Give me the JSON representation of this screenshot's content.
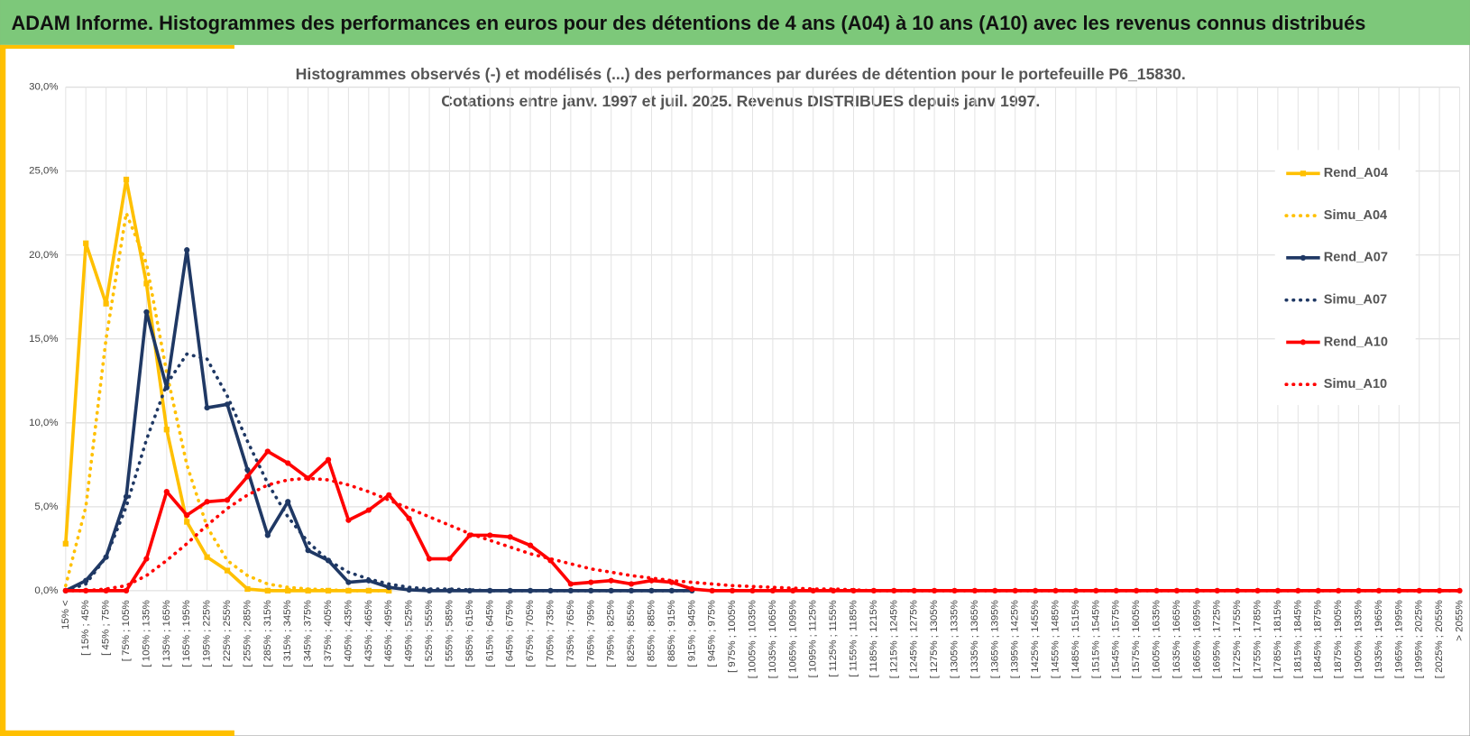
{
  "header": {
    "title": "ADAM Informe. Histogrammes des performances en euros pour des détentions de 4 ans (A04) à 10 ans (A10) avec les revenus connus distribués"
  },
  "chart_data": {
    "type": "line",
    "title": "Histogrammes observés (-) et modélisés (...) des performances par durées de détention pour le portefeuille P6_15830.",
    "subtitle": "Cotations entre janv. 1997 et juil. 2025. Revenus DISTRIBUES depuis janv 1997.",
    "grid": true,
    "legend": "right",
    "ylim": [
      0,
      30
    ],
    "yticks": [
      {
        "value": 0,
        "label": "0,0%"
      },
      {
        "value": 5,
        "label": "5,0%"
      },
      {
        "value": 10,
        "label": "10,0%"
      },
      {
        "value": 15,
        "label": "15,0%"
      },
      {
        "value": 20,
        "label": "20,0%"
      },
      {
        "value": 25,
        "label": "25,0%"
      },
      {
        "value": 30,
        "label": "30,0%"
      }
    ],
    "categories": [
      "15% <",
      "[ 15% ; 45%",
      "[ 45% ; 75%",
      "[ 75% ; 105%",
      "[ 105% ; 135%",
      "[ 135% ; 165%",
      "[ 165% ; 195%",
      "[ 195% ; 225%",
      "[ 225% ; 255%",
      "[ 255% ; 285%",
      "[ 285% ; 315%",
      "[ 315% ; 345%",
      "[ 345% ; 375%",
      "[ 375% ; 405%",
      "[ 405% ; 435%",
      "[ 435% ; 465%",
      "[ 465% ; 495%",
      "[ 495% ; 525%",
      "[ 525% ; 555%",
      "[ 555% ; 585%",
      "[ 585% ; 615%",
      "[ 615% ; 645%",
      "[ 645% ; 675%",
      "[ 675% ; 705%",
      "[ 705% ; 735%",
      "[ 735% ; 765%",
      "[ 765% ; 795%",
      "[ 795% ; 825%",
      "[ 825% ; 855%",
      "[ 855% ; 885%",
      "[ 885% ; 915%",
      "[ 915% ; 945%",
      "[ 945% ; 975%",
      "[ 975% ; 1005%",
      "[ 1005% ; 1035%",
      "[ 1035% ; 1065%",
      "[ 1065% ; 1095%",
      "[ 1095% ; 1125%",
      "[ 1125% ; 1155%",
      "[ 1155% ; 1185%",
      "[ 1185% ; 1215%",
      "[ 1215% ; 1245%",
      "[ 1245% ; 1275%",
      "[ 1275% ; 1305%",
      "[ 1305% ; 1335%",
      "[ 1335% ; 1365%",
      "[ 1365% ; 1395%",
      "[ 1395% ; 1425%",
      "[ 1425% ; 1455%",
      "[ 1455% ; 1485%",
      "[ 1485% ; 1515%",
      "[ 1515% ; 1545%",
      "[ 1545% ; 1575%",
      "[ 1575% ; 1605%",
      "[ 1605% ; 1635%",
      "[ 1635% ; 1665%",
      "[ 1665% ; 1695%",
      "[ 1695% ; 1725%",
      "[ 1725% ; 1755%",
      "[ 1755% ; 1785%",
      "[ 1785% ; 1815%",
      "[ 1815% ; 1845%",
      "[ 1845% ; 1875%",
      "[ 1875% ; 1905%",
      "[ 1905% ; 1935%",
      "[ 1935% ; 1965%",
      "[ 1965% ; 1995%",
      "[ 1995% ; 2025%",
      "[ 2025% ; 2055%",
      "> 2055%"
    ],
    "series": [
      {
        "name": "Rend_A04",
        "color": "#ffc000",
        "dashed": false,
        "marker": "square",
        "values": [
          2.8,
          20.7,
          17.1,
          24.5,
          18.3,
          9.6,
          4.1,
          2.0,
          1.2,
          0.1,
          0,
          0,
          0,
          0,
          0,
          0,
          0,
          null,
          null,
          null,
          null,
          null,
          null,
          null,
          null,
          null,
          null,
          null,
          null,
          null,
          null,
          null,
          null,
          null,
          null,
          null,
          null,
          null,
          null,
          null,
          null,
          null,
          null,
          null,
          null,
          null,
          null,
          null,
          null,
          null,
          null,
          null,
          null,
          null,
          null,
          null,
          null,
          null,
          null,
          null,
          null,
          null,
          null,
          null,
          null,
          null,
          null,
          null,
          null,
          null
        ]
      },
      {
        "name": "Simu_A04",
        "color": "#ffc000",
        "dashed": true,
        "marker": "none",
        "values": [
          0.3,
          5.0,
          15.0,
          22.5,
          19.5,
          13.0,
          7.5,
          3.8,
          1.8,
          0.9,
          0.4,
          0.2,
          0.1,
          0.05,
          0,
          0,
          0,
          null,
          null,
          null,
          null,
          null,
          null,
          null,
          null,
          null,
          null,
          null,
          null,
          null,
          null,
          null,
          null,
          null,
          null,
          null,
          null,
          null,
          null,
          null,
          null,
          null,
          null,
          null,
          null,
          null,
          null,
          null,
          null,
          null,
          null,
          null,
          null,
          null,
          null,
          null,
          null,
          null,
          null,
          null,
          null,
          null,
          null,
          null,
          null,
          null,
          null,
          null,
          null,
          null
        ]
      },
      {
        "name": "Rend_A07",
        "color": "#1f3864",
        "dashed": false,
        "marker": "circle",
        "values": [
          0,
          0.6,
          2.0,
          5.6,
          16.6,
          12.1,
          20.3,
          10.9,
          11.1,
          7.2,
          3.3,
          5.3,
          2.4,
          1.8,
          0.5,
          0.6,
          0.2,
          0.05,
          0,
          0,
          0,
          0,
          0,
          0,
          0,
          0,
          0,
          0,
          0,
          0,
          0,
          0,
          null,
          null,
          null,
          null,
          null,
          null,
          null,
          null,
          null,
          null,
          null,
          null,
          null,
          null,
          null,
          null,
          null,
          null,
          null,
          null,
          null,
          null,
          null,
          null,
          null,
          null,
          null,
          null,
          null,
          null,
          null,
          null,
          null,
          null,
          null,
          null,
          null,
          null
        ]
      },
      {
        "name": "Simu_A07",
        "color": "#1f3864",
        "dashed": true,
        "marker": "none",
        "values": [
          0,
          0.4,
          2.0,
          5.0,
          9.0,
          12.3,
          14.1,
          13.8,
          11.6,
          8.9,
          6.4,
          4.4,
          2.9,
          1.8,
          1.1,
          0.7,
          0.4,
          0.2,
          0.1,
          0.1,
          0.05,
          0,
          0,
          0,
          0,
          0,
          0,
          0,
          0,
          0,
          0,
          0,
          null,
          null,
          null,
          null,
          null,
          null,
          null,
          null,
          null,
          null,
          null,
          null,
          null,
          null,
          null,
          null,
          null,
          null,
          null,
          null,
          null,
          null,
          null,
          null,
          null,
          null,
          null,
          null,
          null,
          null,
          null,
          null,
          null,
          null,
          null,
          null,
          null,
          null
        ]
      },
      {
        "name": "Rend_A10",
        "color": "#ff0000",
        "dashed": false,
        "marker": "circle",
        "values": [
          0,
          0,
          0,
          0,
          1.9,
          5.9,
          4.5,
          5.3,
          5.4,
          6.8,
          8.3,
          7.6,
          6.7,
          7.8,
          4.2,
          4.8,
          5.7,
          4.3,
          1.9,
          1.9,
          3.3,
          3.3,
          3.2,
          2.7,
          1.8,
          0.4,
          0.5,
          0.6,
          0.4,
          0.6,
          0.5,
          0.1,
          0,
          0,
          0,
          0,
          0,
          0,
          0,
          0,
          0,
          0,
          0,
          0,
          0,
          0,
          0,
          0,
          0,
          0,
          0,
          0,
          0,
          0,
          0,
          0,
          0,
          0,
          0,
          0,
          0,
          0,
          0,
          0,
          0,
          0,
          0,
          0,
          0,
          0
        ]
      },
      {
        "name": "Simu_A10",
        "color": "#ff0000",
        "dashed": true,
        "marker": "none",
        "values": [
          0,
          0,
          0.1,
          0.3,
          0.9,
          1.8,
          2.8,
          3.9,
          4.9,
          5.7,
          6.3,
          6.6,
          6.7,
          6.6,
          6.3,
          5.9,
          5.4,
          4.9,
          4.4,
          3.9,
          3.4,
          3.0,
          2.6,
          2.2,
          1.9,
          1.6,
          1.3,
          1.1,
          0.9,
          0.75,
          0.6,
          0.5,
          0.4,
          0.3,
          0.25,
          0.2,
          0.15,
          0.1,
          0.1,
          0.05,
          0,
          0,
          0,
          0,
          0,
          0,
          0,
          0,
          0,
          0,
          0,
          0,
          0,
          0,
          0,
          0,
          0,
          0,
          0,
          0,
          0,
          0,
          0,
          0,
          0,
          0,
          0,
          0,
          0,
          0
        ]
      }
    ]
  }
}
